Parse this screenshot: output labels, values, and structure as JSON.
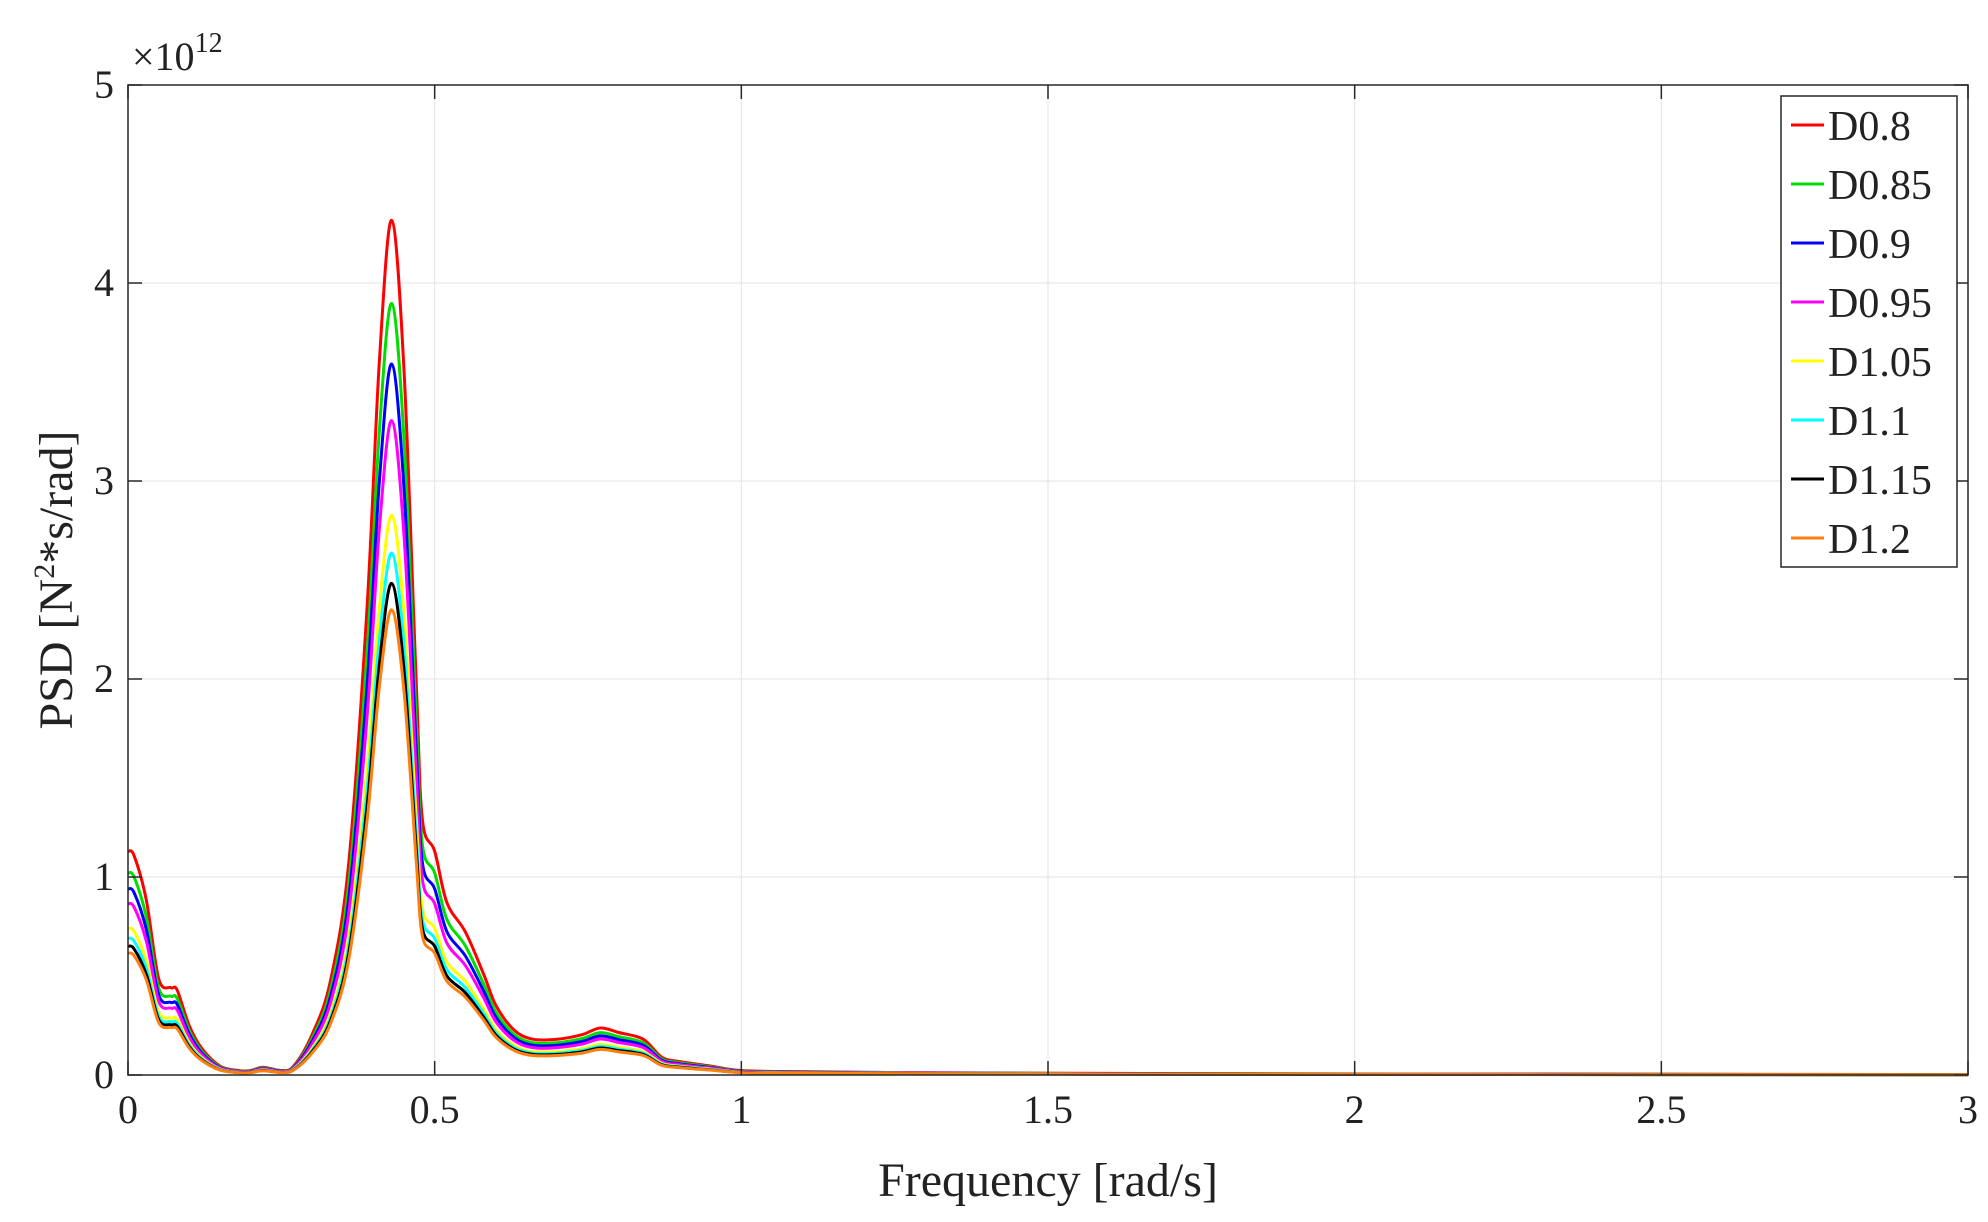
{
  "chart_data": {
    "type": "line",
    "xlabel": "Frequency [rad/s]",
    "ylabel_parts": {
      "pre": "PSD [N",
      "sup": "2",
      "post": "*s/rad]"
    },
    "y_exponent": {
      "base": "×10",
      "power": "12"
    },
    "xlim": [
      0,
      3
    ],
    "ylim": [
      0,
      5
    ],
    "x_ticks": [
      0,
      0.5,
      1,
      1.5,
      2,
      2.5,
      3
    ],
    "x_tick_labels": [
      "0",
      "0.5",
      "1",
      "1.5",
      "2",
      "2.5",
      "3"
    ],
    "y_ticks": [
      0,
      1,
      2,
      3,
      4,
      5
    ],
    "y_tick_labels": [
      "0",
      "1",
      "2",
      "3",
      "4",
      "5"
    ],
    "grid": true,
    "legend_position": "top-right",
    "shape": {
      "x": [
        0,
        0.01,
        0.03,
        0.05,
        0.07,
        0.08,
        0.1,
        0.12,
        0.15,
        0.18,
        0.2,
        0.22,
        0.25,
        0.27,
        0.3,
        0.33,
        0.36,
        0.39,
        0.41,
        0.43,
        0.45,
        0.47,
        0.48,
        0.5,
        0.52,
        0.55,
        0.58,
        0.6,
        0.63,
        0.66,
        0.7,
        0.74,
        0.77,
        0.8,
        0.84,
        0.87,
        0.9,
        0.95,
        1.0,
        1.1,
        1.3,
        1.6,
        2.0,
        2.5,
        3.0
      ],
      "y": [
        1.0,
        0.98,
        0.78,
        0.43,
        0.39,
        0.38,
        0.22,
        0.12,
        0.04,
        0.02,
        0.02,
        0.035,
        0.02,
        0.04,
        0.18,
        0.42,
        0.95,
        2.1,
        3.2,
        3.82,
        3.15,
        1.75,
        1.14,
        1.0,
        0.77,
        0.64,
        0.45,
        0.31,
        0.2,
        0.16,
        0.16,
        0.18,
        0.21,
        0.19,
        0.16,
        0.08,
        0.06,
        0.04,
        0.02,
        0.015,
        0.01,
        0.007,
        0.005,
        0.003,
        0.002
      ]
    },
    "series": [
      {
        "name": "D0.8",
        "color": "#ff0000",
        "scale": 1.13
      },
      {
        "name": "D0.85",
        "color": "#00dd00",
        "scale": 1.02
      },
      {
        "name": "D0.9",
        "color": "#0000ff",
        "scale": 0.94
      },
      {
        "name": "D0.95",
        "color": "#ff00ff",
        "scale": 0.865
      },
      {
        "name": "D1.05",
        "color": "#ffff00",
        "scale": 0.74
      },
      {
        "name": "D1.1",
        "color": "#00ffff",
        "scale": 0.69
      },
      {
        "name": "D1.15",
        "color": "#000000",
        "scale": 0.65
      },
      {
        "name": "D1.2",
        "color": "#ff7f0e",
        "scale": 0.615
      }
    ]
  }
}
